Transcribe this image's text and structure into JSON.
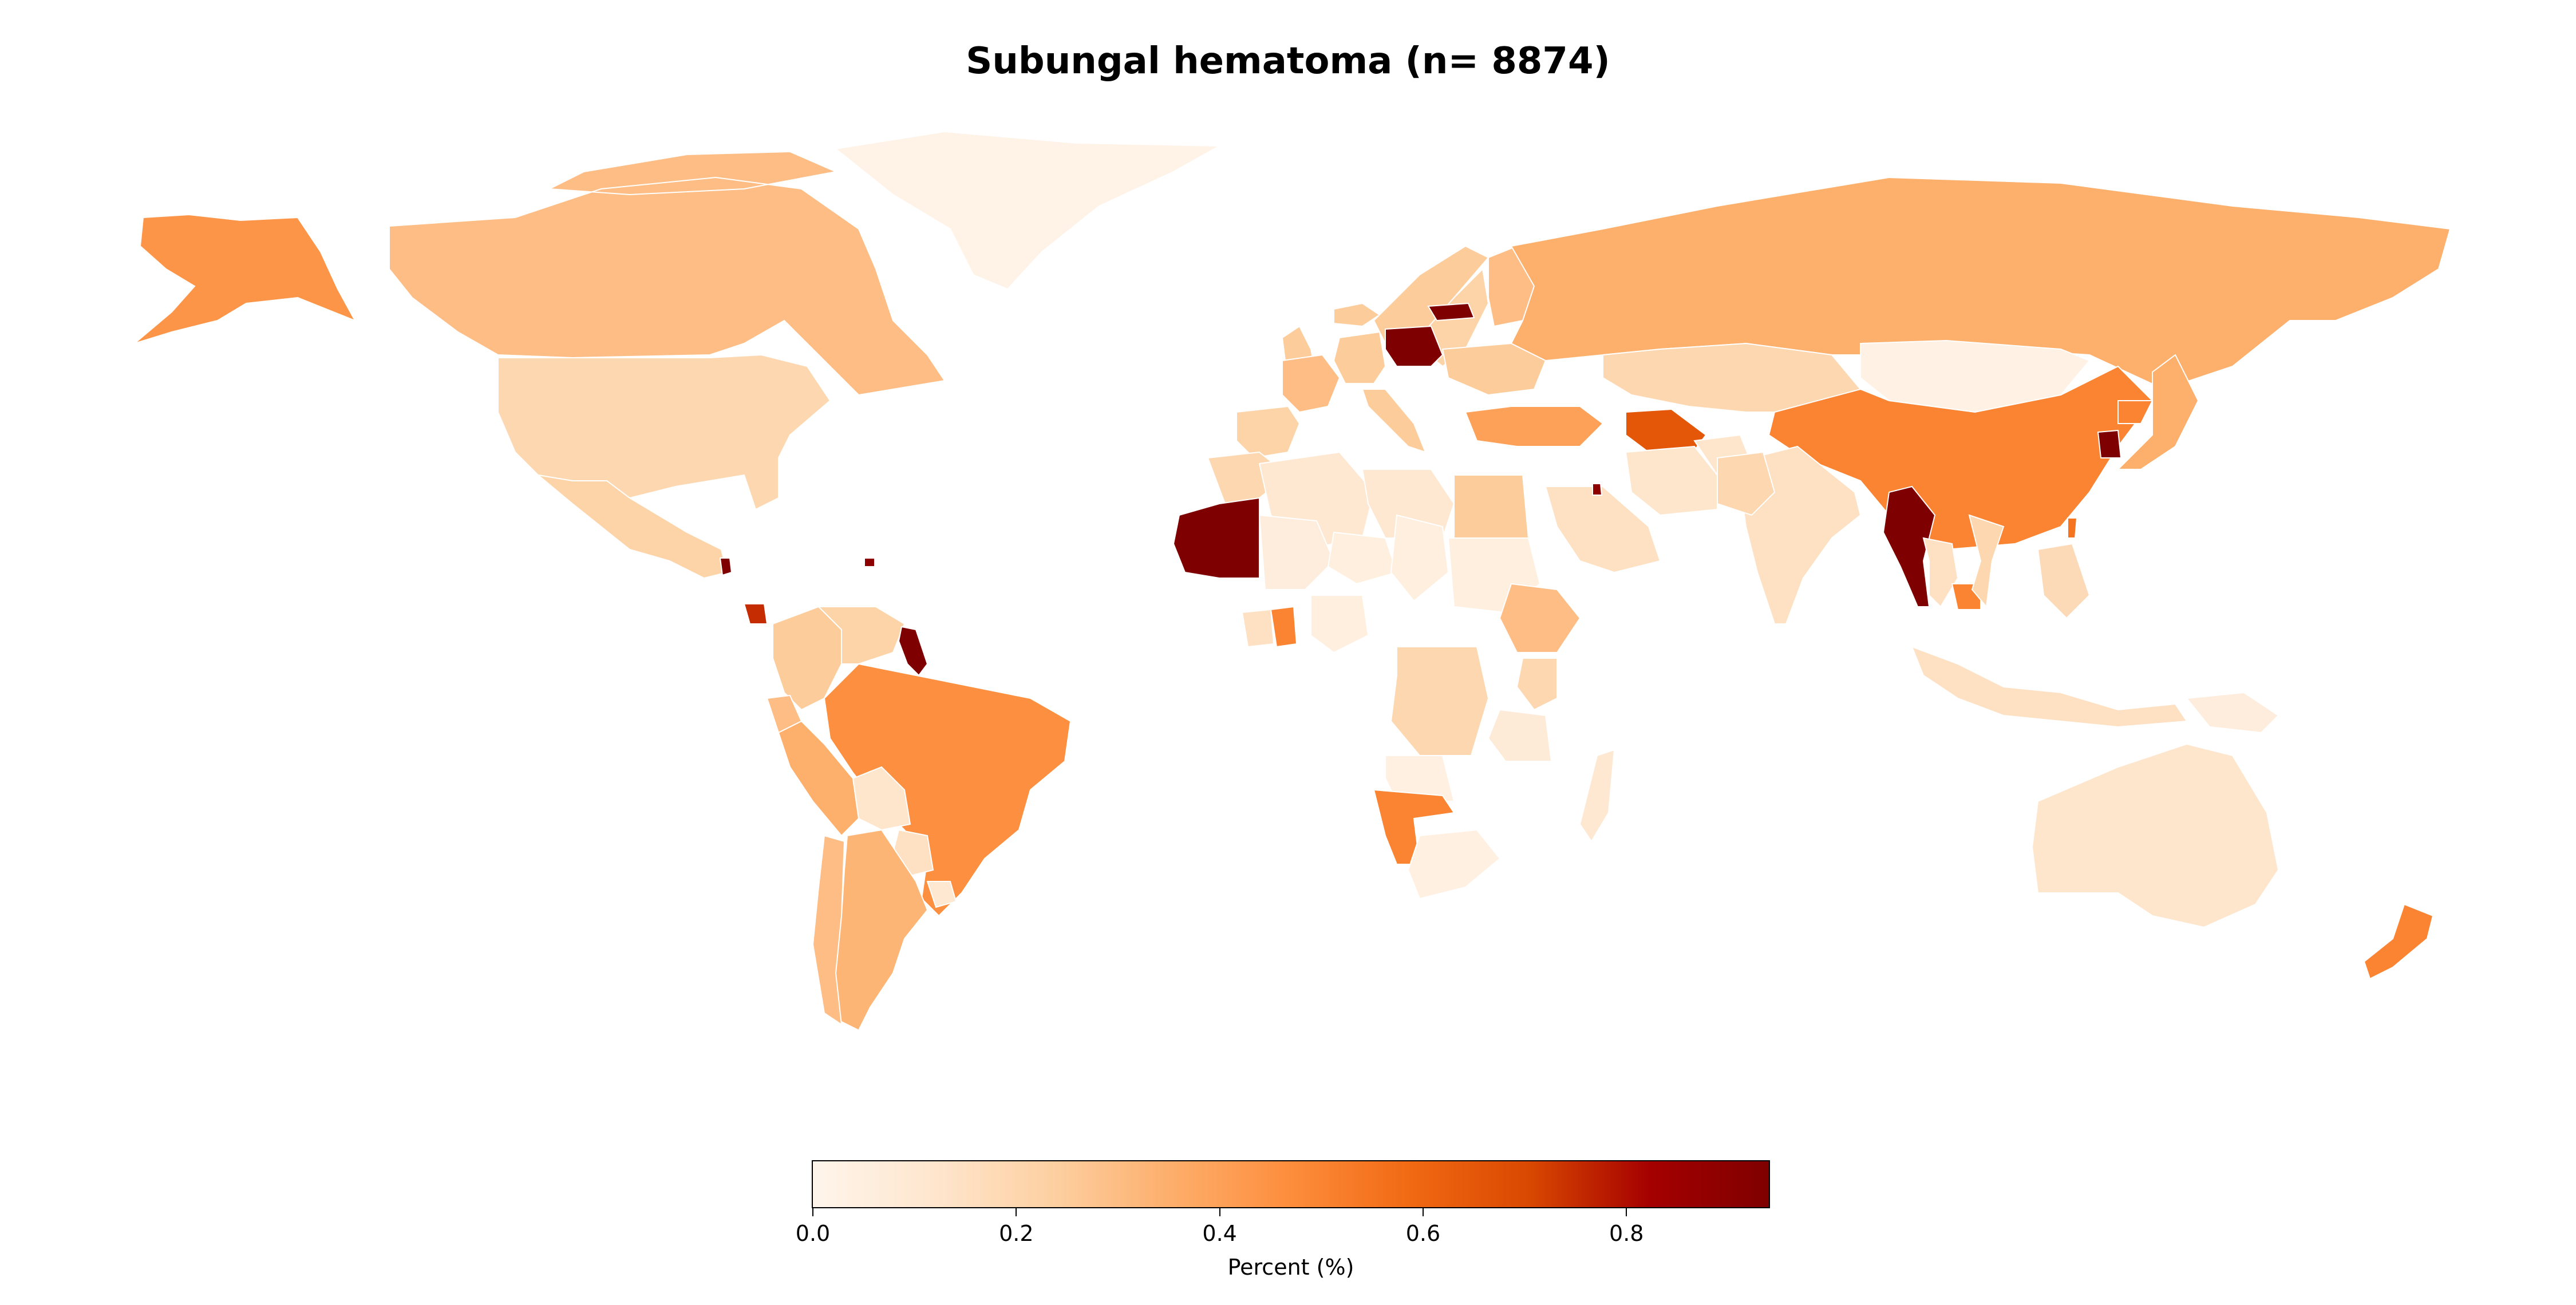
{
  "title": "Subungal hematoma (n= 8874)",
  "colorbar": {
    "label": "Percent (%)",
    "min": 0.0,
    "max": 0.94,
    "ticks": [
      "0.0",
      "0.2",
      "0.4",
      "0.6",
      "0.8"
    ],
    "tick_values": [
      0.0,
      0.2,
      0.4,
      0.6,
      0.8
    ],
    "colormap": [
      "#fff5eb",
      "#fee6ce",
      "#fdd0a2",
      "#fdae6b",
      "#fd8d3c",
      "#f16913",
      "#d94801",
      "#a50000",
      "#7f0000"
    ]
  },
  "chart_data": {
    "type": "choropleth",
    "title": "Subungal hematoma (n= 8874)",
    "value_label": "Percent (%)",
    "range": [
      0.0,
      0.94
    ],
    "regions": [
      {
        "name": "Alaska",
        "value": 0.44
      },
      {
        "name": "Canada",
        "value": 0.3
      },
      {
        "name": "Greenland",
        "value": 0.02
      },
      {
        "name": "United States",
        "value": 0.2
      },
      {
        "name": "Mexico",
        "value": 0.22
      },
      {
        "name": "Guatemala",
        "value": 0.94
      },
      {
        "name": "Costa Rica",
        "value": 0.75
      },
      {
        "name": "Dominican Republic",
        "value": 0.9
      },
      {
        "name": "Colombia",
        "value": 0.25
      },
      {
        "name": "Venezuela",
        "value": 0.22
      },
      {
        "name": "Guyana",
        "value": 0.94
      },
      {
        "name": "Ecuador",
        "value": 0.3
      },
      {
        "name": "Peru",
        "value": 0.35
      },
      {
        "name": "Brazil",
        "value": 0.46
      },
      {
        "name": "Bolivia",
        "value": 0.12
      },
      {
        "name": "Paraguay",
        "value": 0.15
      },
      {
        "name": "Argentina",
        "value": 0.33
      },
      {
        "name": "Chile",
        "value": 0.3
      },
      {
        "name": "Uruguay",
        "value": 0.1
      },
      {
        "name": "Iceland",
        "value": 0.25
      },
      {
        "name": "United Kingdom",
        "value": 0.25
      },
      {
        "name": "Norway",
        "value": 0.25
      },
      {
        "name": "Sweden",
        "value": 0.22
      },
      {
        "name": "Finland",
        "value": 0.3
      },
      {
        "name": "Spain",
        "value": 0.22
      },
      {
        "name": "France",
        "value": 0.3
      },
      {
        "name": "Germany",
        "value": 0.25
      },
      {
        "name": "Poland",
        "value": 0.94
      },
      {
        "name": "Lithuania",
        "value": 0.94
      },
      {
        "name": "Italy",
        "value": 0.25
      },
      {
        "name": "Ukraine",
        "value": 0.25
      },
      {
        "name": "Russia",
        "value": 0.35
      },
      {
        "name": "Kazakhstan",
        "value": 0.2
      },
      {
        "name": "Turkey",
        "value": 0.4
      },
      {
        "name": "Turkmenistan",
        "value": 0.65
      },
      {
        "name": "Mongolia",
        "value": 0.03
      },
      {
        "name": "China",
        "value": 0.5
      },
      {
        "name": "North Korea",
        "value": 0.5
      },
      {
        "name": "South Korea",
        "value": 0.94
      },
      {
        "name": "Japan",
        "value": 0.35
      },
      {
        "name": "Taiwan",
        "value": 0.55
      },
      {
        "name": "India",
        "value": 0.15
      },
      {
        "name": "Myanmar",
        "value": 0.94
      },
      {
        "name": "Thailand",
        "value": 0.15
      },
      {
        "name": "Cambodia",
        "value": 0.5
      },
      {
        "name": "Vietnam",
        "value": 0.2
      },
      {
        "name": "Philippines",
        "value": 0.18
      },
      {
        "name": "Indonesia",
        "value": 0.15
      },
      {
        "name": "Papua New Guinea",
        "value": 0.06
      },
      {
        "name": "Australia",
        "value": 0.12
      },
      {
        "name": "New Zealand",
        "value": 0.5
      },
      {
        "name": "Morocco",
        "value": 0.2
      },
      {
        "name": "Algeria",
        "value": 0.1
      },
      {
        "name": "Libya",
        "value": 0.1
      },
      {
        "name": "Egypt",
        "value": 0.25
      },
      {
        "name": "Mauritania",
        "value": 0.94
      },
      {
        "name": "Mali",
        "value": 0.06
      },
      {
        "name": "Niger",
        "value": 0.05
      },
      {
        "name": "Chad",
        "value": 0.05
      },
      {
        "name": "Sudan",
        "value": 0.05
      },
      {
        "name": "Ethiopia",
        "value": 0.3
      },
      {
        "name": "Ghana",
        "value": 0.5
      },
      {
        "name": "Côte d'Ivoire",
        "value": 0.15
      },
      {
        "name": "Nigeria",
        "value": 0.05
      },
      {
        "name": "DR Congo",
        "value": 0.2
      },
      {
        "name": "Kenya",
        "value": 0.2
      },
      {
        "name": "Tanzania",
        "value": 0.08
      },
      {
        "name": "Angola",
        "value": 0.04
      },
      {
        "name": "Namibia",
        "value": 0.5
      },
      {
        "name": "South Africa",
        "value": 0.04
      },
      {
        "name": "Madagascar",
        "value": 0.1
      },
      {
        "name": "Saudi Arabia",
        "value": 0.15
      },
      {
        "name": "Iran",
        "value": 0.12
      },
      {
        "name": "Afghanistan",
        "value": 0.12
      },
      {
        "name": "Pakistan",
        "value": 0.2
      },
      {
        "name": "Jordan",
        "value": 0.9
      }
    ]
  }
}
